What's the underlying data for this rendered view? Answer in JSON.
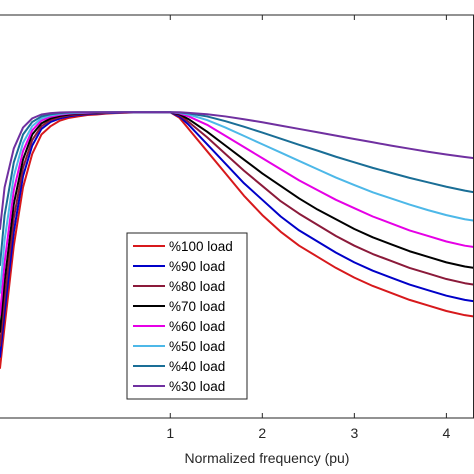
{
  "chart_data": {
    "type": "line",
    "xlabel": "Normalized frequency (pu)",
    "xlim": [
      -0.85,
      4.3
    ],
    "ylim": [
      0,
      1.45
    ],
    "x_ticks": [
      1,
      2,
      3,
      4
    ],
    "x_tick_labels": [
      "1",
      "2",
      "3",
      "4"
    ],
    "grid": false,
    "legend_position": "bottom-center",
    "x": [
      -0.85,
      -0.8,
      -0.7,
      -0.6,
      -0.5,
      -0.4,
      -0.3,
      -0.2,
      -0.1,
      0.0,
      0.1,
      0.2,
      0.3,
      0.4,
      0.5,
      0.6,
      0.7,
      0.8,
      0.9,
      1.0,
      1.1,
      1.2,
      1.4,
      1.6,
      1.8,
      2.0,
      2.2,
      2.4,
      2.6,
      2.8,
      3.0,
      3.2,
      3.4,
      3.6,
      3.8,
      4.0,
      4.2,
      4.3
    ],
    "series": [
      {
        "name": "%100 load",
        "color": "#d7191c",
        "values": [
          0.18,
          0.33,
          0.62,
          0.83,
          0.95,
          1.02,
          1.05,
          1.07,
          1.08,
          1.085,
          1.09,
          1.092,
          1.095,
          1.097,
          1.098,
          1.099,
          1.1,
          1.1,
          1.1,
          1.1,
          1.08,
          1.04,
          0.96,
          0.88,
          0.8,
          0.73,
          0.67,
          0.62,
          0.58,
          0.54,
          0.505,
          0.475,
          0.45,
          0.425,
          0.405,
          0.385,
          0.37,
          0.365
        ]
      },
      {
        "name": "%90 load",
        "color": "#0000c8",
        "values": [
          0.22,
          0.38,
          0.67,
          0.87,
          0.98,
          1.04,
          1.065,
          1.078,
          1.085,
          1.09,
          1.093,
          1.095,
          1.097,
          1.098,
          1.099,
          1.1,
          1.1,
          1.1,
          1.1,
          1.1,
          1.085,
          1.055,
          0.985,
          0.915,
          0.845,
          0.785,
          0.725,
          0.675,
          0.635,
          0.595,
          0.56,
          0.53,
          0.505,
          0.48,
          0.46,
          0.44,
          0.425,
          0.42
        ]
      },
      {
        "name": "%80 load",
        "color": "#8b1a3a",
        "values": [
          0.26,
          0.43,
          0.72,
          0.9,
          1.0,
          1.05,
          1.072,
          1.083,
          1.089,
          1.093,
          1.095,
          1.097,
          1.098,
          1.099,
          1.1,
          1.1,
          1.1,
          1.1,
          1.1,
          1.1,
          1.09,
          1.065,
          1.01,
          0.95,
          0.89,
          0.835,
          0.78,
          0.735,
          0.695,
          0.655,
          0.62,
          0.59,
          0.565,
          0.54,
          0.52,
          0.5,
          0.485,
          0.48
        ]
      },
      {
        "name": "%70 load",
        "color": "#000000",
        "values": [
          0.31,
          0.49,
          0.77,
          0.93,
          1.02,
          1.06,
          1.078,
          1.087,
          1.092,
          1.095,
          1.097,
          1.098,
          1.099,
          1.1,
          1.1,
          1.1,
          1.1,
          1.1,
          1.1,
          1.1,
          1.093,
          1.075,
          1.03,
          0.98,
          0.93,
          0.88,
          0.835,
          0.79,
          0.75,
          0.715,
          0.68,
          0.65,
          0.625,
          0.6,
          0.58,
          0.56,
          0.545,
          0.54
        ]
      },
      {
        "name": "%60 load",
        "color": "#e600e6",
        "values": [
          0.37,
          0.56,
          0.82,
          0.96,
          1.035,
          1.07,
          1.084,
          1.091,
          1.095,
          1.097,
          1.098,
          1.099,
          1.1,
          1.1,
          1.1,
          1.1,
          1.1,
          1.1,
          1.1,
          1.1,
          1.096,
          1.085,
          1.055,
          1.015,
          0.975,
          0.935,
          0.895,
          0.855,
          0.82,
          0.785,
          0.755,
          0.725,
          0.7,
          0.675,
          0.655,
          0.635,
          0.62,
          0.615
        ]
      },
      {
        "name": "%50 load",
        "color": "#4db8e8",
        "values": [
          0.45,
          0.64,
          0.87,
          0.99,
          1.05,
          1.078,
          1.089,
          1.094,
          1.097,
          1.098,
          1.099,
          1.1,
          1.1,
          1.1,
          1.1,
          1.1,
          1.1,
          1.1,
          1.1,
          1.1,
          1.098,
          1.092,
          1.072,
          1.045,
          1.015,
          0.985,
          0.955,
          0.925,
          0.895,
          0.865,
          0.838,
          0.812,
          0.79,
          0.768,
          0.748,
          0.73,
          0.715,
          0.71
        ]
      },
      {
        "name": "%40 load",
        "color": "#1a6e96",
        "values": [
          0.55,
          0.73,
          0.92,
          1.02,
          1.065,
          1.085,
          1.093,
          1.097,
          1.099,
          1.1,
          1.1,
          1.1,
          1.1,
          1.1,
          1.1,
          1.1,
          1.1,
          1.1,
          1.1,
          1.1,
          1.099,
          1.096,
          1.085,
          1.068,
          1.048,
          1.027,
          1.005,
          0.983,
          0.962,
          0.94,
          0.92,
          0.9,
          0.882,
          0.864,
          0.848,
          0.832,
          0.818,
          0.812
        ]
      },
      {
        "name": "%30 load",
        "color": "#7030a0",
        "values": [
          0.68,
          0.83,
          0.97,
          1.045,
          1.078,
          1.092,
          1.097,
          1.099,
          1.1,
          1.1,
          1.1,
          1.1,
          1.1,
          1.1,
          1.1,
          1.1,
          1.1,
          1.1,
          1.1,
          1.1,
          1.1,
          1.098,
          1.093,
          1.085,
          1.075,
          1.064,
          1.052,
          1.04,
          1.028,
          1.016,
          1.004,
          0.992,
          0.98,
          0.969,
          0.958,
          0.948,
          0.939,
          0.935
        ]
      }
    ]
  }
}
